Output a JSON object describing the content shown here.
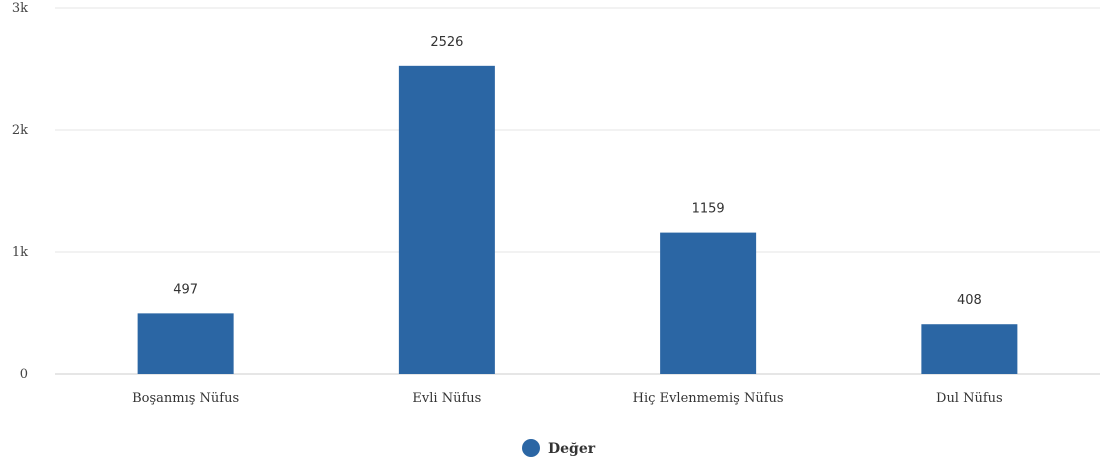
{
  "chart_data": {
    "type": "bar",
    "categories": [
      "Boşanmış Nüfus",
      "Evli Nüfus",
      "Hiç Evlenmemiş Nüfus",
      "Dul Nüfus"
    ],
    "series": [
      {
        "name": "Değer",
        "values": [
          497,
          2526,
          1159,
          408
        ],
        "color": "#2b66a4"
      }
    ],
    "ylim": [
      0,
      3000
    ],
    "yticks": [
      0,
      1000,
      2000,
      3000
    ],
    "ytick_labels": [
      "0",
      "1k",
      "2k",
      "3k"
    ],
    "data_labels": [
      "497",
      "2526",
      "1159",
      "408"
    ],
    "grid": true,
    "legend": {
      "position": "bottom-center"
    }
  }
}
